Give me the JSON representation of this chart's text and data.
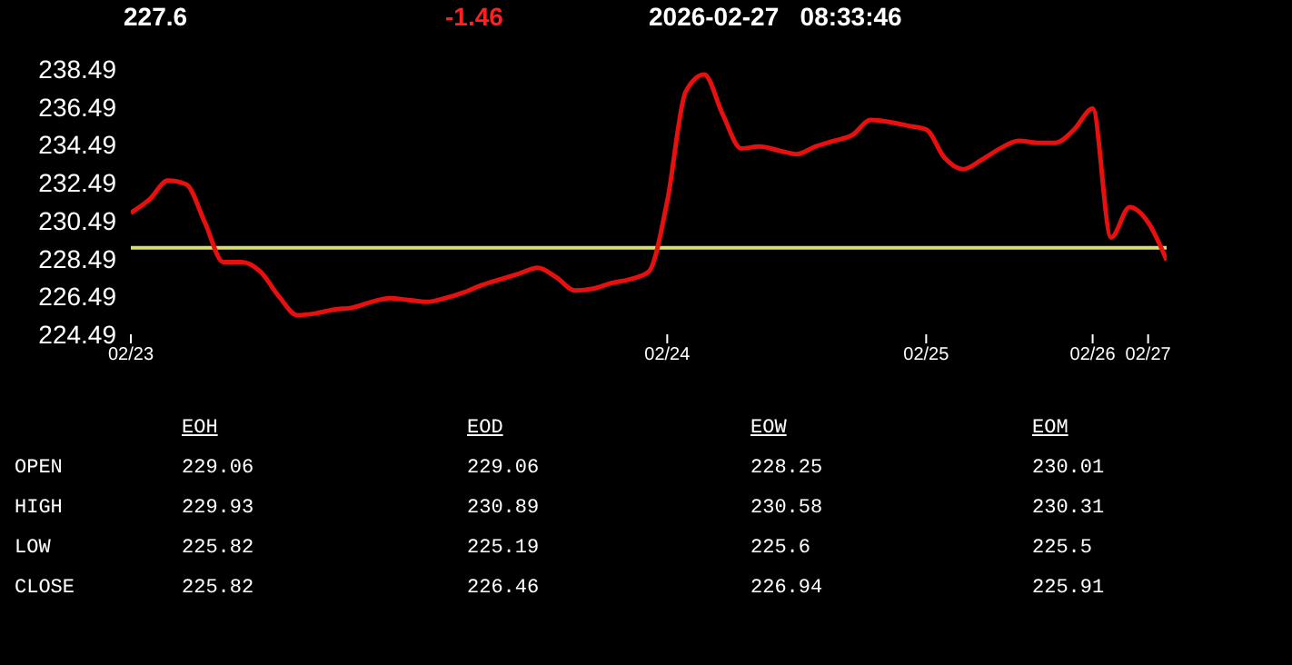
{
  "chart_data": {
    "type": "line",
    "categories": [
      "02/23",
      null,
      null,
      null,
      null,
      null,
      null,
      null,
      null,
      null,
      null,
      null,
      null,
      null,
      null,
      null,
      null,
      null,
      null,
      null,
      null,
      null,
      null,
      null,
      null,
      null,
      null,
      null,
      null,
      "02/24",
      null,
      null,
      null,
      null,
      null,
      null,
      null,
      null,
      null,
      null,
      null,
      null,
      null,
      "02/25",
      null,
      null,
      null,
      null,
      null,
      null,
      null,
      null,
      "02/26",
      null,
      null,
      "02/27",
      null
    ],
    "series": [
      {
        "color": "#e8100e",
        "values": [
          230.9,
          231.6,
          232.6,
          232.4,
          230.4,
          228.3,
          228.3,
          227.8,
          226.5,
          225.5,
          225.6,
          225.8,
          225.9,
          226.2,
          226.4,
          226.3,
          226.2,
          226.4,
          226.7,
          227.1,
          227.4,
          227.7,
          228.0,
          227.5,
          226.8,
          226.9,
          227.2,
          227.4,
          227.8,
          231.5,
          237.3,
          238.2,
          236.1,
          234.3,
          234.4,
          234.2,
          234.0,
          234.4,
          234.7,
          235.0,
          235.8,
          235.7,
          235.5,
          235.3,
          233.8,
          233.2,
          233.7,
          234.3,
          234.7,
          234.6,
          234.6,
          235.3,
          236.4,
          229.6,
          231.2,
          230.4,
          228.4
        ]
      }
    ],
    "ylim": [
      224.49,
      238.49
    ],
    "yticks": [
      224.49,
      226.49,
      228.49,
      230.49,
      232.49,
      234.49,
      236.49,
      238.49
    ],
    "ref_lines": [
      {
        "axis": "y",
        "value": 229.06,
        "color": "#d8e06a"
      }
    ],
    "grid": false,
    "legend": false,
    "marker": "none",
    "line_style": "solid",
    "annotations": [
      "227.6",
      "-1.46",
      "2026-02-27   08:33:46",
      "EOH",
      "EOD",
      "EOW",
      "EOM",
      "OPEN",
      "229.06",
      "229.06",
      "228.25",
      "230.01",
      "HIGH",
      "229.93",
      "230.89",
      "230.58",
      "230.31",
      "LOW",
      "225.82",
      "225.19",
      "225.6",
      "225.5",
      "CLOSE",
      "225.82",
      "226.46",
      "226.94",
      "225.91"
    ]
  }
}
